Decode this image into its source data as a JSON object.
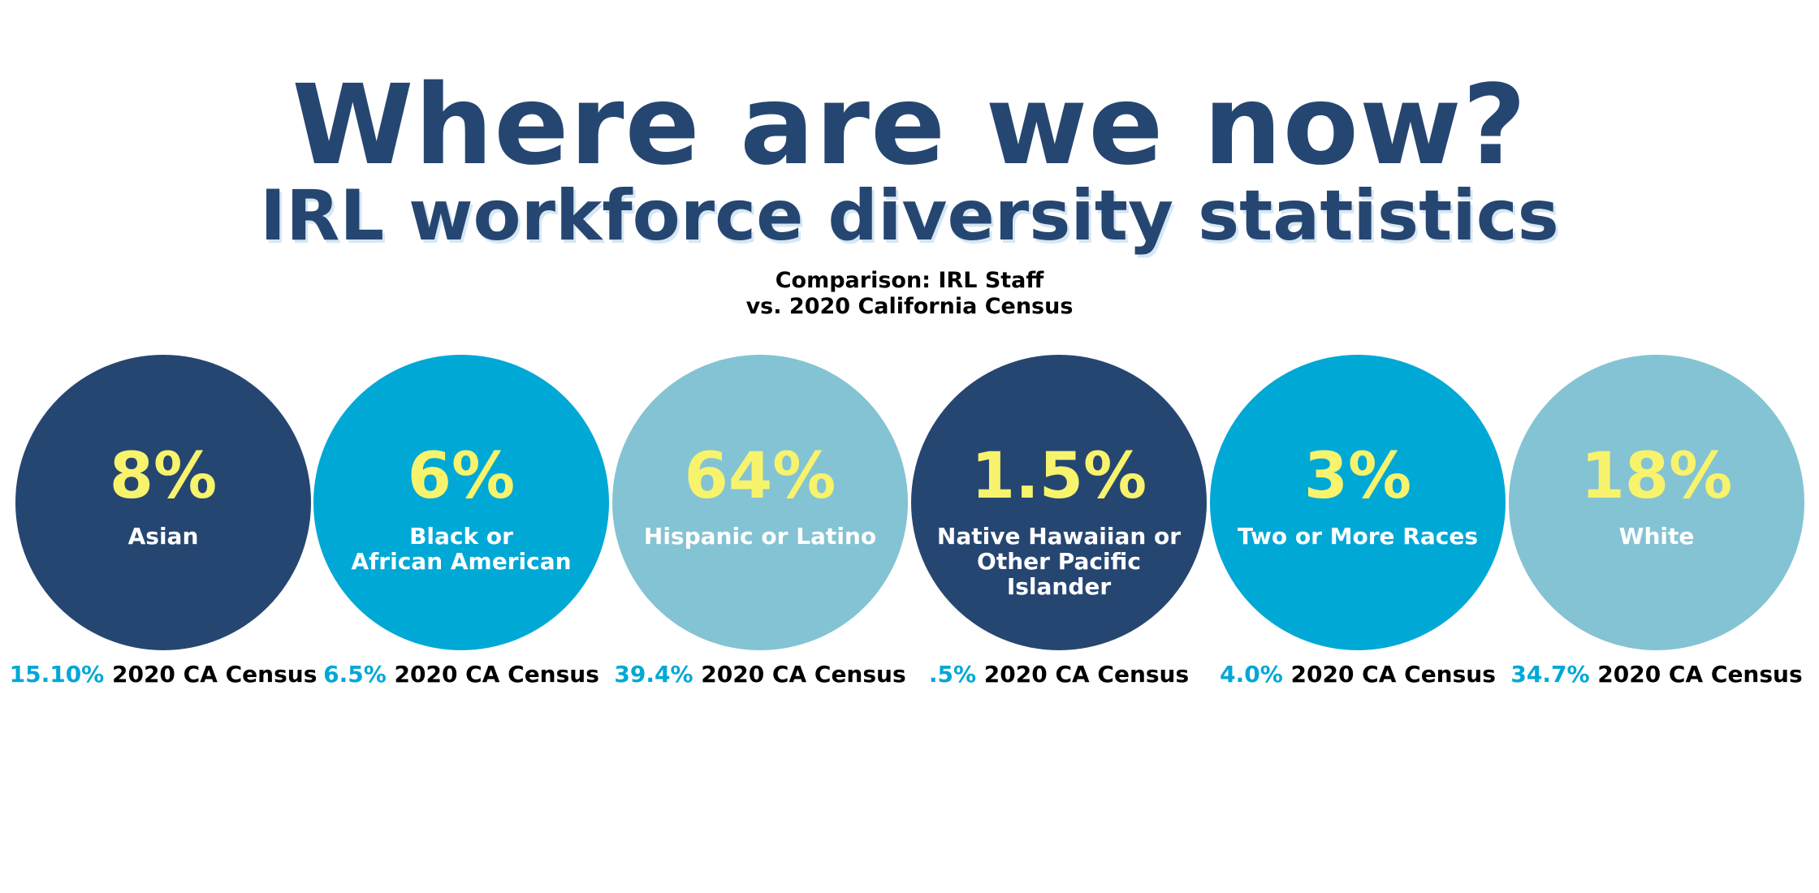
{
  "title": "Where are we now?",
  "subtitle": "IRL workforce diversity statistics",
  "comparison": {
    "line1": "Comparison: IRL Staff",
    "line2": "vs. 2020 California Census"
  },
  "colors": {
    "navy": "#264672",
    "bright_blue": "#00a8d6",
    "light_blue": "#84c3d3",
    "percent_yellow": "#f8f36c",
    "census_value_blue": "#00a8d6"
  },
  "groups": [
    {
      "percent": "8%",
      "label_lines": [
        "Asian"
      ],
      "census_value": "15.10%",
      "census_label": " 2020 CA Census",
      "color": "#264672"
    },
    {
      "percent": "6%",
      "label_lines": [
        "Black or",
        "African American"
      ],
      "census_value": "6.5%",
      "census_label": " 2020 CA Census",
      "color": "#00a8d6"
    },
    {
      "percent": "64%",
      "label_lines": [
        "Hispanic or Latino"
      ],
      "census_value": "39.4%",
      "census_label": " 2020 CA Census",
      "color": "#84c3d3"
    },
    {
      "percent": "1.5%",
      "label_lines": [
        "Native Hawaiian or",
        "Other Pacific",
        "Islander"
      ],
      "census_value": ".5%",
      "census_label": " 2020 CA Census",
      "color": "#264672"
    },
    {
      "percent": "3%",
      "label_lines": [
        "Two or More Races"
      ],
      "census_value": "4.0%",
      "census_label": " 2020 CA Census",
      "color": "#00a8d6"
    },
    {
      "percent": "18%",
      "label_lines": [
        "White"
      ],
      "census_value": "34.7%",
      "census_label": " 2020 CA Census",
      "color": "#84c3d3"
    }
  ]
}
